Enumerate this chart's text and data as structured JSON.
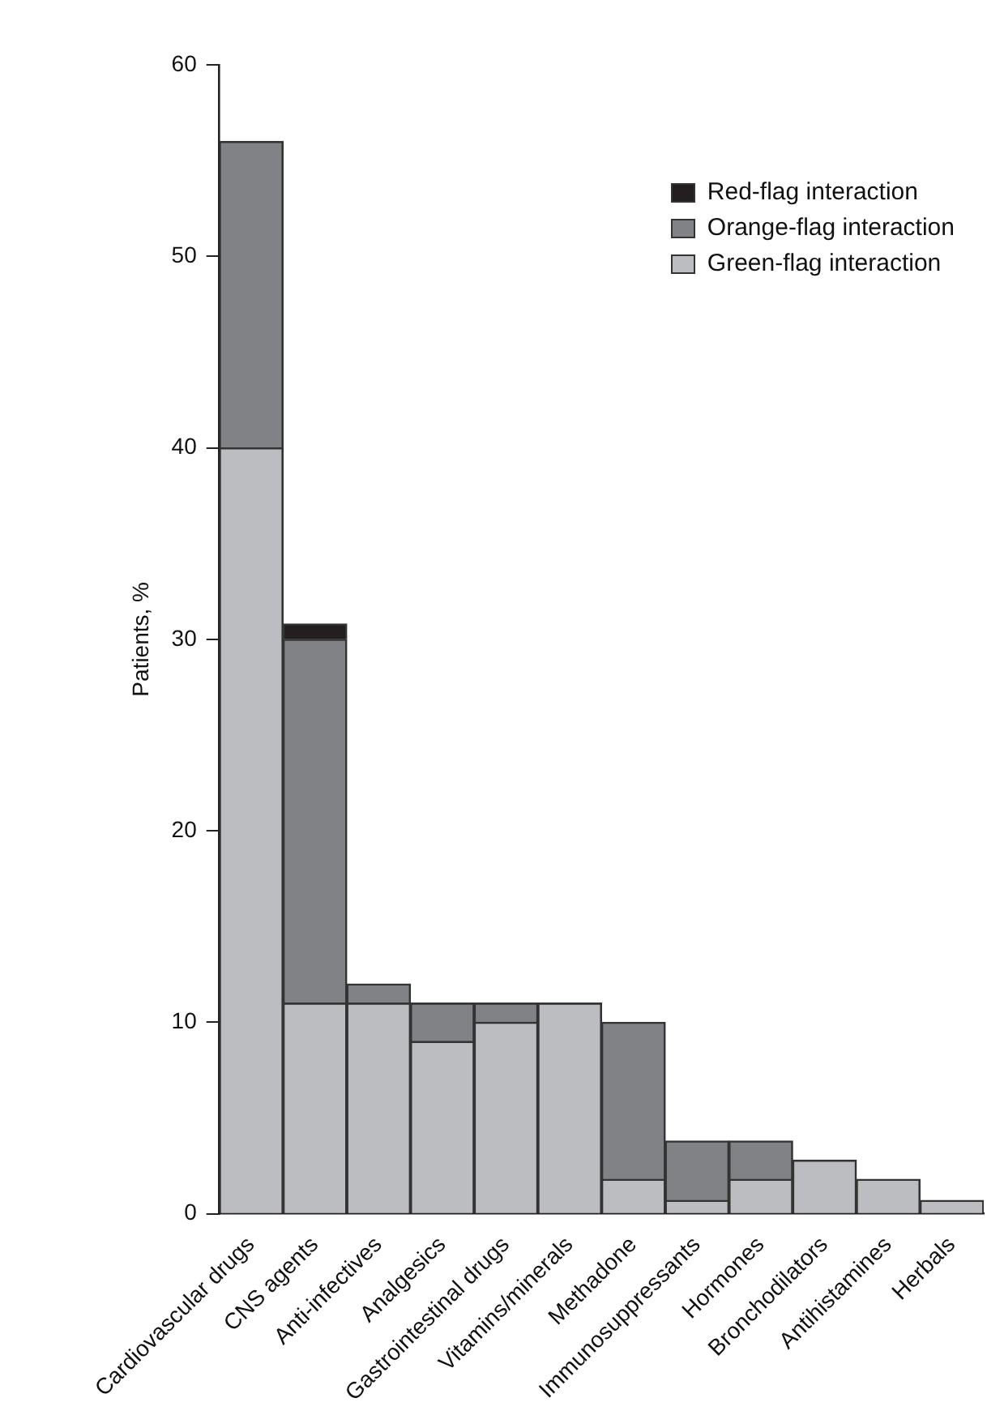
{
  "chart_data": {
    "type": "bar",
    "ylabel": "Patients, %",
    "stacked": true,
    "legend": "top right",
    "grid": false,
    "categories": [
      "Cardiovascular drugs",
      "CNS agents",
      "Anti-infectives",
      "Analgesics",
      "Gastrointestinal drugs",
      "Vitamins/minerals",
      "Methadone",
      "Immunosuppressants",
      "Hormones",
      "Bronchodilators",
      "Antihistamines",
      "Herbals"
    ],
    "ylim": [
      0,
      60
    ],
    "yticks": [
      0,
      10,
      20,
      30,
      40,
      50,
      60
    ],
    "series": [
      {
        "name": "Green-flag interaction",
        "color": "#bcbdc1",
        "values": [
          40,
          11,
          11,
          9,
          10,
          11,
          1.8,
          0.7,
          1.8,
          2.8,
          1.8,
          0.7
        ]
      },
      {
        "name": "Orange-flag interaction",
        "color": "#818285",
        "values": [
          16,
          19,
          1,
          2,
          1,
          0,
          8.2,
          3.1,
          2,
          0,
          0,
          0
        ]
      },
      {
        "name": "Red-flag interaction",
        "color": "#231f20",
        "values": [
          0,
          0.8,
          0,
          0,
          0,
          0,
          0,
          0,
          0,
          0,
          0,
          0
        ]
      }
    ]
  }
}
